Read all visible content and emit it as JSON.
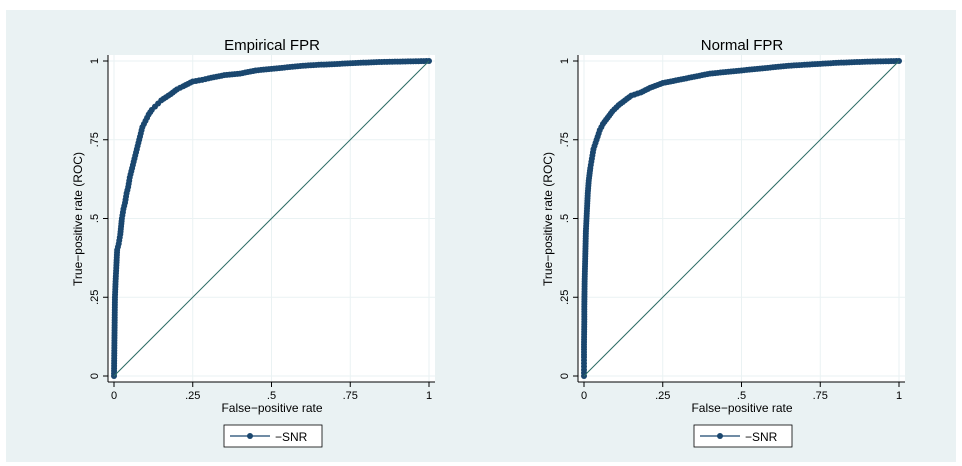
{
  "colors": {
    "outer_background": "#ffffff",
    "graph_region": "#eaf2f3",
    "plot_region": "#ffffff",
    "grid": "#eaf2f3",
    "series": "#1a476f",
    "reference_line": "#2d6d66"
  },
  "chart_data": [
    {
      "type": "line",
      "title": "Empirical FPR",
      "xlabel": "False−positive rate",
      "ylabel": "True−positive rate (ROC)",
      "xlim": [
        0,
        1
      ],
      "ylim": [
        0,
        1
      ],
      "x_ticks": [
        0,
        0.25,
        0.5,
        0.75,
        1
      ],
      "x_tick_labels": [
        "0",
        ".25",
        ".5",
        ".75",
        "1"
      ],
      "y_ticks": [
        0,
        0.25,
        0.5,
        0.75,
        1
      ],
      "y_tick_labels": [
        "0",
        ".25",
        ".5",
        ".75",
        "1"
      ],
      "grid": true,
      "legend": {
        "position": "bottom",
        "entries": [
          "−SNR"
        ]
      },
      "series": [
        {
          "name": "−SNR",
          "marker": "circle",
          "points": [
            [
              0.0,
              0.0
            ],
            [
              0.003,
              0.25
            ],
            [
              0.005,
              0.3
            ],
            [
              0.008,
              0.36
            ],
            [
              0.01,
              0.4
            ],
            [
              0.015,
              0.42
            ],
            [
              0.02,
              0.45
            ],
            [
              0.025,
              0.5
            ],
            [
              0.03,
              0.53
            ],
            [
              0.035,
              0.55
            ],
            [
              0.04,
              0.58
            ],
            [
              0.045,
              0.6
            ],
            [
              0.05,
              0.63
            ],
            [
              0.055,
              0.65
            ],
            [
              0.06,
              0.67
            ],
            [
              0.065,
              0.69
            ],
            [
              0.07,
              0.71
            ],
            [
              0.075,
              0.73
            ],
            [
              0.08,
              0.75
            ],
            [
              0.085,
              0.77
            ],
            [
              0.09,
              0.79
            ],
            [
              0.1,
              0.81
            ],
            [
              0.11,
              0.83
            ],
            [
              0.12,
              0.845
            ],
            [
              0.13,
              0.855
            ],
            [
              0.14,
              0.865
            ],
            [
              0.15,
              0.875
            ],
            [
              0.165,
              0.885
            ],
            [
              0.18,
              0.895
            ],
            [
              0.2,
              0.91
            ],
            [
              0.22,
              0.92
            ],
            [
              0.25,
              0.935
            ],
            [
              0.28,
              0.94
            ],
            [
              0.3,
              0.945
            ],
            [
              0.35,
              0.955
            ],
            [
              0.4,
              0.96
            ],
            [
              0.45,
              0.97
            ],
            [
              0.5,
              0.975
            ],
            [
              0.55,
              0.98
            ],
            [
              0.6,
              0.985
            ],
            [
              0.65,
              0.988
            ],
            [
              0.7,
              0.99
            ],
            [
              0.75,
              0.993
            ],
            [
              0.8,
              0.995
            ],
            [
              0.85,
              0.997
            ],
            [
              0.9,
              0.998
            ],
            [
              0.95,
              0.999
            ],
            [
              1.0,
              1.0
            ]
          ]
        },
        {
          "name": "",
          "style": "reference",
          "points": [
            [
              0,
              0
            ],
            [
              1,
              1
            ]
          ]
        }
      ]
    },
    {
      "type": "line",
      "title": "Normal FPR",
      "xlabel": "False−positive rate",
      "ylabel": "True−positive rate (ROC)",
      "xlim": [
        0,
        1
      ],
      "ylim": [
        0,
        1
      ],
      "x_ticks": [
        0,
        0.25,
        0.5,
        0.75,
        1
      ],
      "x_tick_labels": [
        "0",
        ".25",
        ".5",
        ".75",
        "1"
      ],
      "y_ticks": [
        0,
        0.25,
        0.5,
        0.75,
        1
      ],
      "y_tick_labels": [
        "0",
        ".25",
        ".5",
        ".75",
        "1"
      ],
      "grid": true,
      "legend": {
        "position": "bottom",
        "entries": [
          "−SNR"
        ]
      },
      "series": [
        {
          "name": "−SNR",
          "marker": "circle",
          "points": [
            [
              0.0,
              0.0
            ],
            [
              0.0,
              0.03
            ],
            [
              0.0,
              0.06
            ],
            [
              0.0,
              0.1
            ],
            [
              0.0005,
              0.14
            ],
            [
              0.001,
              0.18
            ],
            [
              0.001,
              0.22
            ],
            [
              0.0015,
              0.26
            ],
            [
              0.002,
              0.3
            ],
            [
              0.003,
              0.34
            ],
            [
              0.004,
              0.38
            ],
            [
              0.005,
              0.42
            ],
            [
              0.006,
              0.46
            ],
            [
              0.008,
              0.5
            ],
            [
              0.01,
              0.54
            ],
            [
              0.012,
              0.58
            ],
            [
              0.015,
              0.62
            ],
            [
              0.02,
              0.66
            ],
            [
              0.025,
              0.69
            ],
            [
              0.03,
              0.72
            ],
            [
              0.04,
              0.75
            ],
            [
              0.05,
              0.78
            ],
            [
              0.06,
              0.8
            ],
            [
              0.075,
              0.82
            ],
            [
              0.09,
              0.84
            ],
            [
              0.11,
              0.86
            ],
            [
              0.13,
              0.875
            ],
            [
              0.15,
              0.89
            ],
            [
              0.18,
              0.9
            ],
            [
              0.21,
              0.915
            ],
            [
              0.25,
              0.93
            ],
            [
              0.3,
              0.94
            ],
            [
              0.35,
              0.95
            ],
            [
              0.4,
              0.96
            ],
            [
              0.45,
              0.965
            ],
            [
              0.5,
              0.97
            ],
            [
              0.55,
              0.975
            ],
            [
              0.6,
              0.98
            ],
            [
              0.65,
              0.985
            ],
            [
              0.7,
              0.988
            ],
            [
              0.75,
              0.991
            ],
            [
              0.8,
              0.994
            ],
            [
              0.85,
              0.996
            ],
            [
              0.9,
              0.998
            ],
            [
              0.95,
              0.999
            ],
            [
              1.0,
              1.0
            ]
          ]
        },
        {
          "name": "",
          "style": "reference",
          "points": [
            [
              0,
              0
            ],
            [
              1,
              1
            ]
          ]
        }
      ]
    }
  ]
}
